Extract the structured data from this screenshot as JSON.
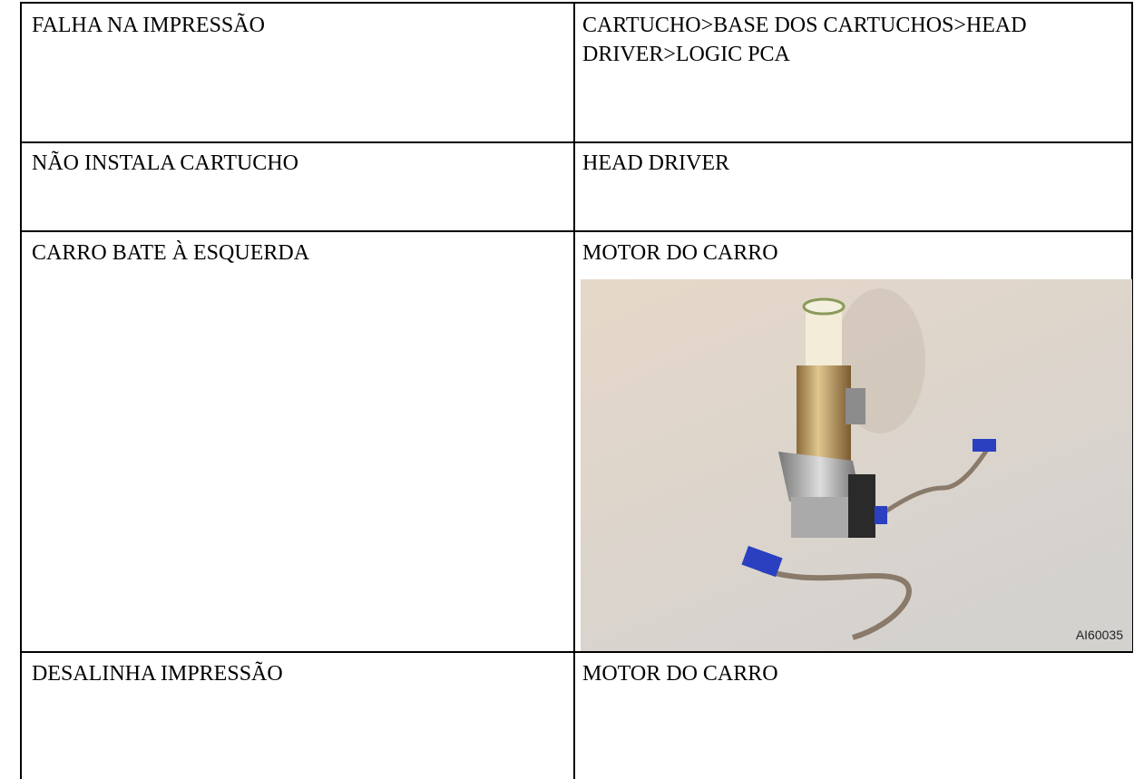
{
  "table": {
    "rows": [
      [
        "FALHA NA IMPRESSÃO",
        "CARTUCHO>BASE DOS CARTUCHOS>HEAD DRIVER>LOGIC PCA"
      ],
      [
        "NÃO INSTALA CARTUCHO",
        "HEAD DRIVER"
      ],
      [
        "CARRO BATE À ESQUERDA",
        "MOTOR DO CARRO"
      ],
      [
        "DESALINHA IMPRESSÃO",
        "MOTOR DO CARRO"
      ]
    ],
    "image": {
      "caption": "AI60035"
    }
  }
}
